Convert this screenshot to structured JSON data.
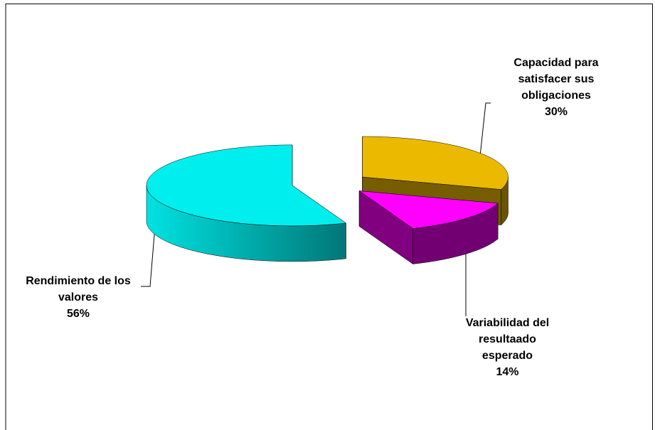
{
  "chart_data": {
    "type": "pie",
    "categories": [
      "Capacidad para satisfacer sus obligaciones",
      "Variabilidad del resultaado esperado",
      "Rendimiento de los valores"
    ],
    "values": [
      30,
      14,
      56
    ],
    "value_labels": [
      "30%",
      "14%",
      "56%"
    ],
    "colors": [
      "#ebba00",
      "#ff00ff",
      "#00eeee"
    ],
    "exploded": true,
    "three_d": true
  }
}
